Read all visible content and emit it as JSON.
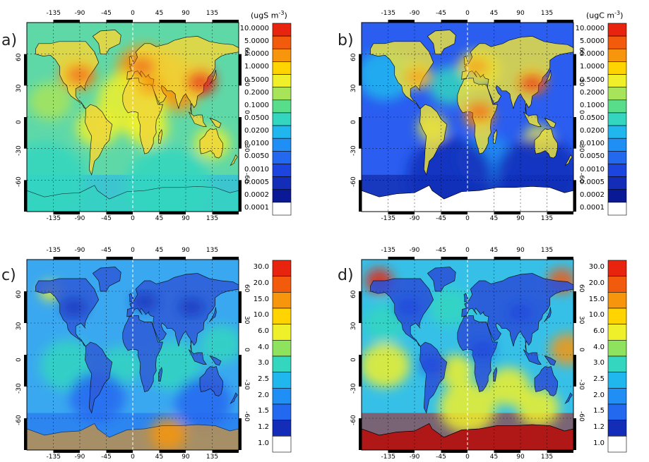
{
  "panels": [
    {
      "id": "a",
      "label": "a)",
      "unit": "(ugS m",
      "unit_sup": "-3",
      "colorbar": "conc"
    },
    {
      "id": "b",
      "label": "b)",
      "unit": "(ugC m",
      "unit_sup": "-3",
      "colorbar": "conc"
    },
    {
      "id": "c",
      "label": "c)",
      "unit": "",
      "unit_sup": "",
      "colorbar": "ratio"
    },
    {
      "id": "d",
      "label": "d)",
      "unit": "",
      "unit_sup": "",
      "colorbar": "ratio"
    }
  ],
  "lon_ticks": [
    "-135",
    "-90",
    "-45",
    "0",
    "45",
    "90",
    "135"
  ],
  "lat_ticks": [
    "60",
    "30",
    "0",
    "-30",
    "-60"
  ],
  "colorbars": {
    "conc": {
      "labels": [
        "10.0000",
        "5.0000",
        "2.0000",
        "1.0000",
        "0.5000",
        "0.2000",
        "0.1000",
        "0.0500",
        "0.0200",
        "0.0100",
        "0.0050",
        "0.0010",
        "0.0005",
        "0.0002",
        "0.0001"
      ],
      "colors": [
        "#e8240f",
        "#f25a0c",
        "#f7960c",
        "#ffd400",
        "#f0f02a",
        "#a8e45a",
        "#58dd8a",
        "#34d6c0",
        "#20b7ee",
        "#1f8ff5",
        "#2369f0",
        "#1c44de",
        "#132db8",
        "#0a1a96",
        "#ffffff"
      ]
    },
    "ratio": {
      "labels": [
        "30.0",
        "20.0",
        "15.0",
        "10.0",
        "6.0",
        "4.0",
        "3.0",
        "2.5",
        "2.0",
        "1.5",
        "1.2",
        "1.0"
      ],
      "colors": [
        "#e8240f",
        "#f25a0c",
        "#f7960c",
        "#ffd400",
        "#f0f02a",
        "#8ee25e",
        "#34d6c0",
        "#20b7ee",
        "#1f8ff5",
        "#2369f0",
        "#132db8",
        "#ffffff"
      ]
    }
  },
  "palette": {
    "ocean_a": "#5fd8a8",
    "ocean_b": "#2a5df0",
    "ocean_c": "#3aa8f0",
    "ocean_d": "#36c0e8",
    "land_a": "#f0d83a",
    "land_b": "#e8e040",
    "land_c": "#2f5bd8",
    "land_d": "#2a4fd8",
    "antarctic_b": "#ffffff",
    "antarctic_d": "#b01818"
  }
}
